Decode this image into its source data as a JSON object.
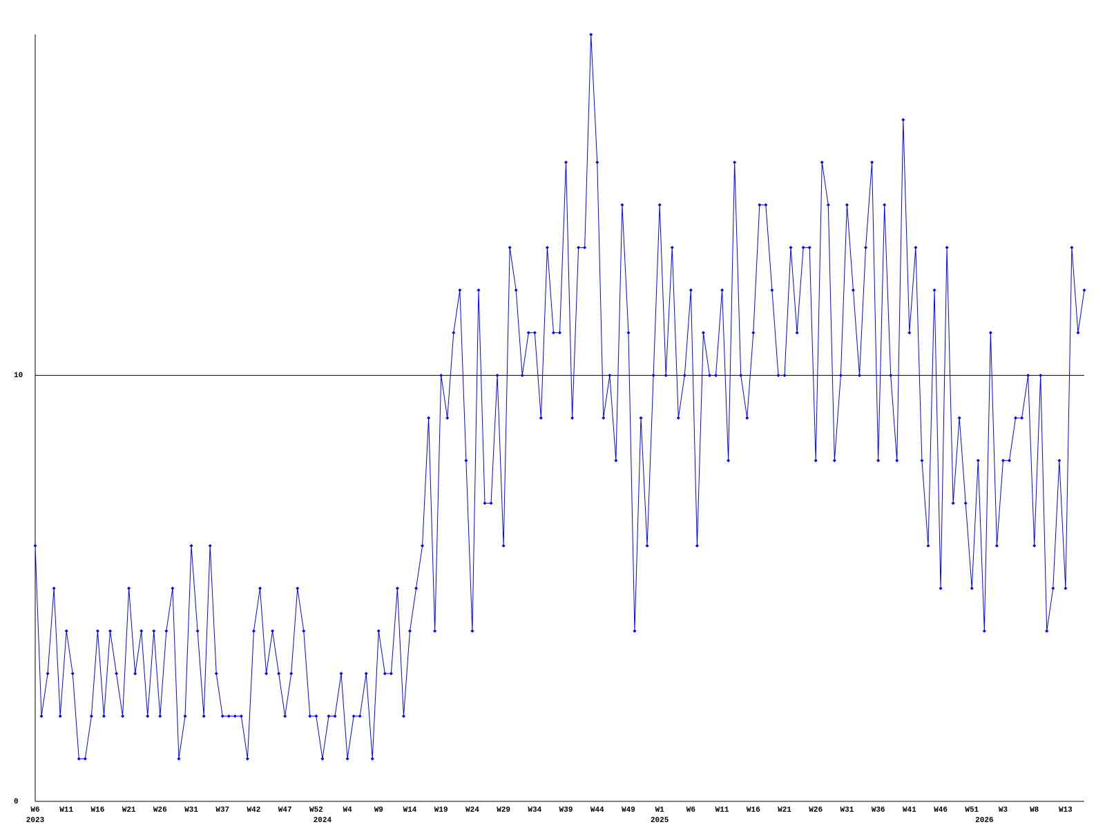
{
  "chart_data": {
    "type": "line",
    "color": "#0000ff",
    "ylim": [
      0,
      18
    ],
    "yticks": [
      0,
      10
    ],
    "grid": true,
    "categories": [
      "W6",
      null,
      null,
      null,
      null,
      "W11",
      null,
      null,
      null,
      null,
      "W16",
      null,
      null,
      null,
      null,
      "W21",
      null,
      null,
      null,
      null,
      "W26",
      null,
      null,
      null,
      null,
      "W31",
      null,
      null,
      null,
      null,
      "W37",
      null,
      null,
      null,
      null,
      "W42",
      null,
      null,
      null,
      null,
      "W47",
      null,
      null,
      null,
      null,
      "W52",
      null,
      null,
      null,
      null,
      "W4",
      null,
      null,
      null,
      null,
      "W9",
      null,
      null,
      null,
      null,
      "W14",
      null,
      null,
      null,
      null,
      "W19",
      null,
      null,
      null,
      null,
      "W24",
      null,
      null,
      null,
      null,
      "W29",
      null,
      null,
      null,
      null,
      "W34",
      null,
      null,
      null,
      null,
      "W39",
      null,
      null,
      null,
      null,
      "W44",
      null,
      null,
      null,
      null,
      "W49",
      null,
      null,
      null,
      null,
      "W1",
      null,
      null,
      null,
      null,
      "W6",
      null,
      null,
      null,
      null,
      "W11",
      null,
      null,
      null,
      null,
      "W16",
      null,
      null,
      null,
      null,
      "W21",
      null,
      null,
      null,
      null,
      "W26",
      null,
      null,
      null,
      null,
      "W31",
      null,
      null,
      null,
      null,
      "W36",
      null,
      null,
      null,
      null,
      "W41",
      null,
      null,
      null,
      null,
      "W46",
      null,
      null,
      null,
      null,
      "W51",
      null,
      null,
      null,
      null,
      "W3",
      null,
      null,
      null,
      null,
      "W8",
      null,
      null,
      null,
      null,
      "W13",
      null,
      null,
      null
    ],
    "years": [
      "2023",
      null,
      null,
      null,
      null,
      null,
      null,
      null,
      null,
      null,
      null,
      null,
      null,
      null,
      null,
      null,
      null,
      null,
      null,
      null,
      null,
      null,
      null,
      null,
      null,
      null,
      null,
      null,
      null,
      null,
      null,
      null,
      null,
      null,
      null,
      null,
      null,
      null,
      null,
      null,
      null,
      null,
      null,
      null,
      null,
      null,
      "2024",
      null,
      null,
      null,
      null,
      null,
      null,
      null,
      null,
      null,
      null,
      null,
      null,
      null,
      null,
      null,
      null,
      null,
      null,
      null,
      null,
      null,
      null,
      null,
      null,
      null,
      null,
      null,
      null,
      null,
      null,
      null,
      null,
      null,
      null,
      null,
      null,
      null,
      null,
      null,
      null,
      null,
      null,
      null,
      null,
      null,
      null,
      null,
      null,
      null,
      null,
      null,
      null,
      null,
      "2025",
      null,
      null,
      null,
      null,
      null,
      null,
      null,
      null,
      null,
      null,
      null,
      null,
      null,
      null,
      null,
      null,
      null,
      null,
      null,
      null,
      null,
      null,
      null,
      null,
      null,
      null,
      null,
      null,
      null,
      null,
      null,
      null,
      null,
      null,
      null,
      null,
      null,
      null,
      null,
      null,
      null,
      null,
      null,
      null,
      null,
      null,
      null,
      null,
      null,
      null,
      null,
      "2026",
      null,
      null,
      null,
      null,
      null,
      null,
      null,
      null,
      null,
      null,
      null,
      null,
      null,
      null,
      null,
      null
    ],
    "values": [
      6,
      2,
      3,
      5,
      2,
      4,
      3,
      1,
      1,
      2,
      4,
      2,
      4,
      3,
      2,
      5,
      3,
      4,
      2,
      4,
      2,
      4,
      5,
      1,
      2,
      6,
      4,
      2,
      6,
      3,
      2,
      2,
      2,
      2,
      1,
      4,
      5,
      3,
      4,
      3,
      2,
      3,
      5,
      4,
      2,
      2,
      1,
      2,
      2,
      3,
      1,
      2,
      2,
      3,
      1,
      4,
      3,
      3,
      5,
      2,
      4,
      5,
      6,
      9,
      4,
      10,
      9,
      11,
      12,
      8,
      4,
      12,
      7,
      7,
      10,
      6,
      13,
      12,
      10,
      11,
      11,
      9,
      13,
      11,
      11,
      15,
      9,
      13,
      13,
      18,
      15,
      9,
      10,
      8,
      14,
      11,
      4,
      9,
      6,
      10,
      14,
      10,
      13,
      9,
      10,
      12,
      6,
      11,
      10,
      10,
      12,
      8,
      15,
      10,
      9,
      11,
      14,
      14,
      12,
      10,
      10,
      13,
      11,
      13,
      13,
      8,
      15,
      14,
      8,
      10,
      14,
      12,
      10,
      13,
      15,
      8,
      14,
      10,
      8,
      16,
      11,
      13,
      8,
      6,
      12,
      5,
      13,
      7,
      9,
      7,
      5,
      8,
      4,
      11,
      6,
      8,
      8,
      9,
      9,
      10,
      6,
      10,
      4,
      5,
      8,
      5,
      13,
      11,
      12
    ]
  }
}
